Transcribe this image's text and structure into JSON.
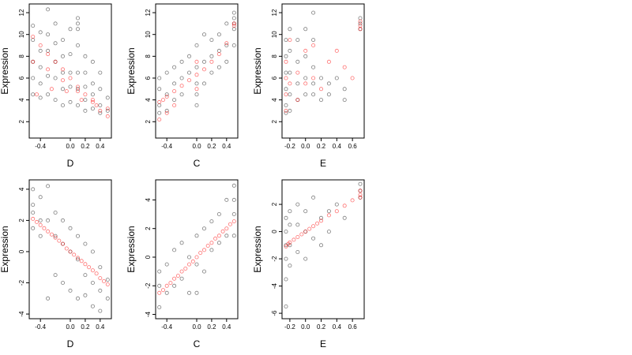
{
  "colors": {
    "observed": "#000000",
    "fitted": "#ff0000",
    "background": "#ffffff"
  },
  "chart_data": [
    {
      "type": "scatter",
      "title": "",
      "xlabel": "D",
      "ylabel": "Expression",
      "xlim": [
        -0.55,
        0.55
      ],
      "ylim": [
        0.5,
        12.8
      ],
      "xticks": [
        -0.4,
        0.0,
        0.2,
        0.4
      ],
      "yticks": [
        2,
        4,
        6,
        8,
        10,
        12
      ],
      "grid": false,
      "legend": "none",
      "series": [
        {
          "role": "observed",
          "marker": "open-circle",
          "color": "#000000",
          "x": [
            -0.5,
            -0.5,
            -0.5,
            -0.5,
            -0.5,
            -0.4,
            -0.4,
            -0.4,
            -0.4,
            -0.4,
            -0.3,
            -0.3,
            -0.3,
            -0.3,
            -0.3,
            -0.2,
            -0.2,
            -0.2,
            -0.2,
            -0.2,
            -0.1,
            -0.1,
            -0.1,
            -0.1,
            -0.1,
            0.0,
            0.0,
            0.0,
            0.0,
            0.0,
            0.1,
            0.1,
            0.1,
            0.1,
            0.1,
            0.1,
            0.1,
            0.2,
            0.2,
            0.2,
            0.2,
            0.2,
            0.3,
            0.3,
            0.3,
            0.3,
            0.4,
            0.4,
            0.4,
            0.4,
            0.5,
            0.5
          ],
          "y": [
            10.8,
            9.5,
            7.5,
            6.0,
            4.5,
            10.2,
            8.5,
            7.0,
            5.5,
            4.2,
            12.3,
            10.0,
            8.5,
            6.2,
            4.5,
            11.0,
            9.2,
            7.5,
            6.0,
            4.0,
            9.5,
            8.0,
            6.5,
            5.0,
            3.5,
            10.5,
            8.2,
            6.5,
            5.2,
            3.8,
            11.5,
            11.0,
            10.5,
            9.0,
            6.5,
            5.0,
            3.5,
            8.0,
            6.5,
            5.2,
            4.0,
            3.0,
            7.5,
            5.5,
            4.5,
            3.2,
            6.5,
            5.0,
            3.5,
            2.8,
            4.2,
            3.0
          ]
        },
        {
          "role": "fitted",
          "marker": "open-circle",
          "color": "#ff0000",
          "x": [
            -0.5,
            -0.4,
            -0.3,
            -0.2,
            -0.1,
            0.0,
            0.1,
            0.2,
            0.3,
            0.4,
            0.5,
            -0.5,
            -0.3,
            -0.1,
            0.1,
            0.3,
            0.5,
            -0.45,
            -0.25,
            -0.05,
            0.15,
            0.35
          ],
          "y": [
            9.8,
            9.0,
            8.2,
            7.5,
            6.8,
            6.0,
            5.2,
            4.5,
            3.8,
            3.0,
            2.5,
            7.5,
            6.8,
            5.8,
            4.8,
            4.0,
            3.2,
            4.5,
            5.0,
            4.8,
            4.0,
            3.5
          ]
        }
      ]
    },
    {
      "type": "scatter",
      "title": "",
      "xlabel": "C",
      "ylabel": "Expression",
      "xlim": [
        -0.55,
        0.55
      ],
      "ylim": [
        0.5,
        12.8
      ],
      "xticks": [
        -0.4,
        0.0,
        0.2,
        0.4
      ],
      "yticks": [
        2,
        4,
        6,
        8,
        10,
        12
      ],
      "grid": false,
      "legend": "none",
      "series": [
        {
          "role": "observed",
          "marker": "open-circle",
          "color": "#000000",
          "x": [
            -0.5,
            -0.5,
            -0.5,
            -0.5,
            -0.4,
            -0.4,
            -0.4,
            -0.3,
            -0.3,
            -0.3,
            -0.2,
            -0.2,
            -0.2,
            -0.1,
            -0.1,
            0.0,
            0.0,
            0.0,
            0.0,
            0.0,
            0.1,
            0.1,
            0.1,
            0.2,
            0.2,
            0.2,
            0.3,
            0.3,
            0.3,
            0.4,
            0.4,
            0.4,
            0.5,
            0.5,
            0.5,
            0.5,
            0.5
          ],
          "y": [
            6.0,
            5.0,
            3.5,
            2.8,
            6.5,
            4.5,
            3.0,
            7.0,
            5.5,
            4.0,
            7.5,
            6.0,
            4.5,
            8.0,
            6.5,
            9.0,
            7.0,
            5.5,
            4.5,
            3.5,
            10.0,
            7.5,
            5.5,
            9.5,
            8.0,
            6.5,
            10.0,
            8.5,
            7.0,
            11.0,
            9.0,
            7.5,
            12.0,
            11.5,
            11.0,
            10.5,
            9.0
          ]
        },
        {
          "role": "fitted",
          "marker": "open-circle",
          "color": "#ff0000",
          "x": [
            -0.5,
            -0.45,
            -0.4,
            -0.3,
            -0.2,
            -0.1,
            0.0,
            0.1,
            0.2,
            0.3,
            0.4,
            0.5,
            -0.5,
            -0.4,
            -0.3,
            0.0,
            0.0,
            0.5
          ],
          "y": [
            3.8,
            4.0,
            4.3,
            4.8,
            5.3,
            5.8,
            6.3,
            6.8,
            7.5,
            8.2,
            9.2,
            10.8,
            2.2,
            2.8,
            3.5,
            7.5,
            5.0,
            11.0
          ]
        }
      ]
    },
    {
      "type": "scatter",
      "title": "",
      "xlabel": "E",
      "ylabel": "Expression",
      "xlim": [
        -0.3,
        0.75
      ],
      "ylim": [
        0.5,
        12.8
      ],
      "xticks": [
        -0.2,
        0.0,
        0.2,
        0.4,
        0.6
      ],
      "yticks": [
        2,
        4,
        6,
        8,
        10,
        12
      ],
      "grid": false,
      "legend": "none",
      "series": [
        {
          "role": "observed",
          "marker": "open-circle",
          "color": "#000000",
          "x": [
            -0.25,
            -0.25,
            -0.25,
            -0.25,
            -0.25,
            -0.25,
            -0.2,
            -0.2,
            -0.2,
            -0.2,
            -0.2,
            -0.1,
            -0.1,
            -0.1,
            -0.1,
            0.0,
            0.0,
            0.0,
            0.0,
            0.1,
            0.1,
            0.1,
            0.1,
            0.1,
            0.2,
            0.2,
            0.3,
            0.3,
            0.4,
            0.5,
            0.5,
            0.7,
            0.7,
            0.7
          ],
          "y": [
            9.5,
            8.0,
            6.5,
            5.0,
            3.5,
            2.8,
            10.5,
            8.5,
            6.5,
            4.5,
            3.0,
            9.5,
            7.5,
            5.5,
            4.0,
            10.5,
            8.0,
            6.0,
            4.5,
            12.0,
            9.5,
            7.0,
            5.5,
            4.5,
            6.0,
            4.0,
            5.5,
            4.5,
            6.0,
            5.0,
            4.0,
            11.5,
            11.0,
            10.5
          ]
        },
        {
          "role": "fitted",
          "marker": "open-circle",
          "color": "#ff0000",
          "x": [
            -0.25,
            -0.25,
            -0.25,
            -0.25,
            -0.2,
            -0.2,
            -0.1,
            -0.1,
            0.0,
            0.0,
            0.1,
            0.1,
            0.2,
            0.3,
            0.4,
            0.5,
            0.6,
            0.7,
            0.7,
            0.7
          ],
          "y": [
            7.5,
            6.0,
            4.5,
            3.0,
            9.5,
            5.5,
            6.5,
            4.0,
            8.5,
            5.5,
            9.0,
            6.0,
            5.0,
            7.5,
            8.5,
            7.0,
            6.0,
            11.2,
            10.8,
            10.5
          ]
        }
      ]
    },
    {
      "type": "scatter",
      "title": "",
      "xlabel": "D",
      "ylabel": "Expression",
      "xlim": [
        -0.55,
        0.55
      ],
      "ylim": [
        -4.3,
        4.6
      ],
      "xticks": [
        -0.4,
        0.0,
        0.2,
        0.4
      ],
      "yticks": [
        -4,
        -2,
        0,
        2,
        4
      ],
      "grid": false,
      "legend": "none",
      "series": [
        {
          "role": "observed",
          "marker": "open-circle",
          "color": "#000000",
          "x": [
            -0.5,
            -0.5,
            -0.5,
            -0.5,
            -0.4,
            -0.4,
            -0.4,
            -0.3,
            -0.3,
            -0.3,
            -0.2,
            -0.2,
            -0.2,
            -0.1,
            -0.1,
            -0.1,
            0.0,
            0.0,
            0.0,
            0.1,
            0.1,
            0.1,
            0.2,
            0.2,
            0.2,
            0.3,
            0.3,
            0.3,
            0.4,
            0.4,
            0.4,
            0.5,
            0.5
          ],
          "y": [
            4.0,
            3.0,
            2.5,
            1.5,
            3.5,
            2.0,
            1.0,
            4.2,
            2.0,
            -3.0,
            2.5,
            1.0,
            -1.5,
            2.0,
            0.5,
            -2.0,
            1.5,
            0.0,
            -2.5,
            1.0,
            -0.5,
            -3.0,
            0.5,
            -1.5,
            -2.8,
            0.0,
            -2.0,
            -3.5,
            -1.0,
            -2.5,
            -3.8,
            -1.8,
            -3.0
          ]
        },
        {
          "role": "fitted",
          "marker": "open-circle",
          "color": "#ff0000",
          "x": [
            -0.5,
            -0.45,
            -0.4,
            -0.35,
            -0.3,
            -0.25,
            -0.2,
            -0.15,
            -0.1,
            -0.05,
            0.0,
            0.05,
            0.1,
            0.15,
            0.2,
            0.25,
            0.3,
            0.35,
            0.4,
            0.45,
            0.5
          ],
          "y": [
            2.1,
            1.9,
            1.7,
            1.5,
            1.3,
            1.1,
            0.9,
            0.7,
            0.5,
            0.2,
            0.0,
            -0.2,
            -0.4,
            -0.6,
            -0.8,
            -1.0,
            -1.2,
            -1.4,
            -1.7,
            -1.9,
            -2.1
          ]
        }
      ]
    },
    {
      "type": "scatter",
      "title": "",
      "xlabel": "C",
      "ylabel": "Expression",
      "xlim": [
        -0.55,
        0.55
      ],
      "ylim": [
        -4.3,
        5.4
      ],
      "xticks": [
        -0.4,
        0.0,
        0.2,
        0.4
      ],
      "yticks": [
        -4,
        -2,
        0,
        2,
        4
      ],
      "grid": false,
      "legend": "none",
      "series": [
        {
          "role": "observed",
          "marker": "open-circle",
          "color": "#000000",
          "x": [
            -0.5,
            -0.5,
            -0.5,
            -0.4,
            -0.4,
            -0.3,
            -0.3,
            -0.2,
            -0.2,
            -0.1,
            -0.1,
            0.0,
            0.0,
            0.0,
            0.1,
            0.1,
            0.2,
            0.2,
            0.3,
            0.3,
            0.4,
            0.4,
            0.5,
            0.5,
            0.5,
            0.5
          ],
          "y": [
            -1.0,
            -2.0,
            -3.5,
            -0.5,
            -2.5,
            0.5,
            -2.0,
            1.0,
            -1.5,
            0.0,
            -2.5,
            1.5,
            -0.5,
            -2.5,
            2.0,
            -1.0,
            2.5,
            0.5,
            3.0,
            1.0,
            4.0,
            1.5,
            5.0,
            4.0,
            3.0,
            1.5
          ]
        },
        {
          "role": "fitted",
          "marker": "open-circle",
          "color": "#ff0000",
          "x": [
            -0.5,
            -0.45,
            -0.4,
            -0.35,
            -0.3,
            -0.25,
            -0.2,
            -0.15,
            -0.1,
            -0.05,
            0.0,
            0.05,
            0.1,
            0.15,
            0.2,
            0.25,
            0.3,
            0.35,
            0.4,
            0.45,
            0.5
          ],
          "y": [
            -2.5,
            -2.3,
            -2.0,
            -1.8,
            -1.5,
            -1.3,
            -1.0,
            -0.8,
            -0.5,
            -0.3,
            0.0,
            0.3,
            0.5,
            0.8,
            1.0,
            1.3,
            1.5,
            1.8,
            2.0,
            2.3,
            2.5
          ]
        }
      ]
    },
    {
      "type": "scatter",
      "title": "",
      "xlabel": "E",
      "ylabel": "Expression",
      "xlim": [
        -0.3,
        0.75
      ],
      "ylim": [
        -6.4,
        3.8
      ],
      "xticks": [
        -0.2,
        0.0,
        0.2,
        0.4,
        0.6
      ],
      "yticks": [
        -6,
        -4,
        -2,
        0,
        2
      ],
      "grid": false,
      "legend": "none",
      "series": [
        {
          "role": "observed",
          "marker": "open-circle",
          "color": "#000000",
          "x": [
            -0.25,
            -0.25,
            -0.25,
            -0.25,
            -0.25,
            -0.25,
            -0.2,
            -0.2,
            -0.2,
            -0.2,
            -0.1,
            -0.1,
            -0.1,
            0.0,
            0.0,
            0.0,
            0.1,
            0.1,
            0.2,
            0.2,
            0.3,
            0.3,
            0.4,
            0.5,
            0.7,
            0.7,
            0.7
          ],
          "y": [
            1.0,
            0.0,
            -1.0,
            -2.0,
            -3.5,
            -5.5,
            1.5,
            0.5,
            -1.0,
            -2.5,
            2.0,
            0.5,
            -1.5,
            1.5,
            0.0,
            -2.0,
            2.5,
            -0.5,
            1.0,
            -1.0,
            1.5,
            0.0,
            2.0,
            1.0,
            3.5,
            3.0,
            2.5
          ]
        },
        {
          "role": "fitted",
          "marker": "open-circle",
          "color": "#ff0000",
          "x": [
            -0.25,
            -0.22,
            -0.2,
            -0.15,
            -0.1,
            -0.05,
            0.0,
            0.05,
            0.1,
            0.15,
            0.2,
            0.3,
            0.4,
            0.5,
            0.6,
            0.7,
            0.7,
            0.7
          ],
          "y": [
            -1.1,
            -0.9,
            -0.8,
            -0.6,
            -0.4,
            -0.2,
            0.0,
            0.2,
            0.4,
            0.6,
            0.8,
            1.2,
            1.5,
            1.9,
            2.3,
            2.7,
            3.0,
            2.5
          ]
        }
      ]
    }
  ]
}
